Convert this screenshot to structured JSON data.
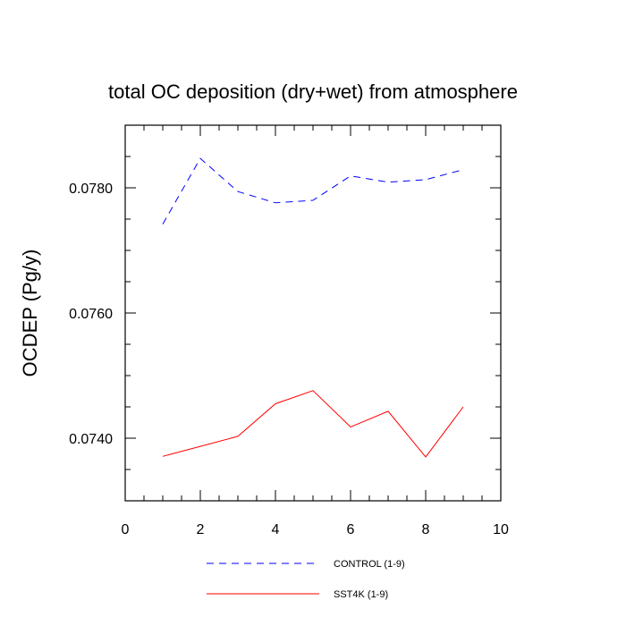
{
  "chart_data": {
    "type": "line",
    "title": "total OC deposition (dry+wet) from atmosphere",
    "xlabel": "",
    "ylabel": "OCDEP  (Pg/y)",
    "xlim": [
      0,
      10
    ],
    "ylim": [
      0.073,
      0.079
    ],
    "xticks": [
      0,
      2,
      4,
      6,
      8,
      10
    ],
    "xtick_labels": [
      "0",
      "2",
      "4",
      "6",
      "8",
      "10"
    ],
    "yticks": [
      0.074,
      0.076,
      0.078
    ],
    "ytick_labels": [
      "0.0740",
      "0.0760",
      "0.0780"
    ],
    "grid": false,
    "legend_position": "bottom",
    "series": [
      {
        "name": "CONTROL (1-9)",
        "color": "#0000ff",
        "style": "dashed",
        "x": [
          1,
          2,
          3,
          4,
          5,
          6,
          7,
          8,
          9
        ],
        "values": [
          0.07742,
          0.07847,
          0.07794,
          0.07776,
          0.0778,
          0.07819,
          0.07809,
          0.07813,
          0.07829
        ]
      },
      {
        "name": "SST4K (1-9)",
        "color": "#ff0000",
        "style": "solid",
        "x": [
          1,
          2,
          3,
          4,
          5,
          6,
          7,
          8,
          9
        ],
        "values": [
          0.07371,
          0.07387,
          0.07403,
          0.07455,
          0.07476,
          0.07418,
          0.07443,
          0.0737,
          0.0745
        ]
      }
    ]
  }
}
